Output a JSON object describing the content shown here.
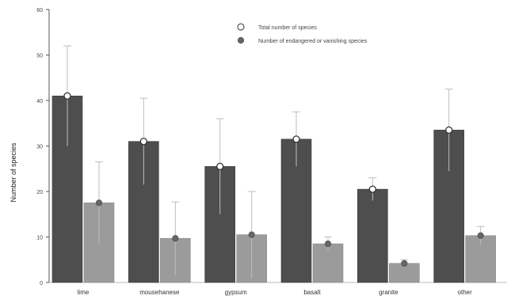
{
  "chart_data": {
    "type": "bar",
    "categories": [
      "lime",
      "mousehanese",
      "gypsum",
      "basalt",
      "granite",
      "other"
    ],
    "series": [
      {
        "name": "Total number of species",
        "values": [
          41,
          31,
          25.5,
          31.5,
          20.5,
          33.5
        ],
        "errors": [
          11,
          9.5,
          10.5,
          6,
          2.5,
          9
        ],
        "color": "#4e4e4e",
        "marker": "open-circle"
      },
      {
        "name": "Number of endangered or vanishing species",
        "values": [
          17.5,
          9.7,
          10.5,
          8.5,
          4.2,
          10.3
        ],
        "errors": [
          9,
          8,
          9.5,
          1.5,
          0.8,
          2
        ],
        "color": "#9b9b9b",
        "marker": "filled-circle"
      }
    ],
    "ylabel": "Number of species",
    "xlabel": "",
    "ylim": [
      0,
      60
    ],
    "yticks": [
      "0",
      "10",
      "20",
      "30",
      "40",
      "50",
      "60"
    ],
    "grid": false,
    "legend_position": "top-right"
  }
}
